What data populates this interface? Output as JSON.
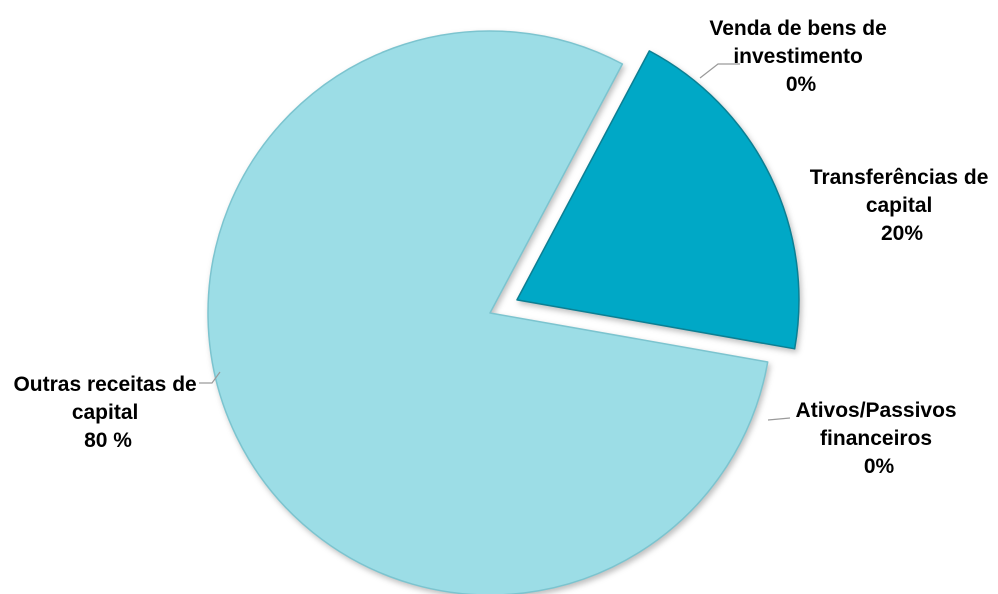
{
  "chart_data": {
    "type": "pie",
    "title": "",
    "slices": [
      {
        "label_lines": [
          "Transferências de",
          "capital"
        ],
        "value_text": "20%",
        "value": 20,
        "color": "#00a8c6",
        "edge": "#0b7f93",
        "exploded": true
      },
      {
        "label_lines": [
          "Ativos/Passivos",
          "financeiros"
        ],
        "value_text": "0%",
        "value": 0,
        "color": "#7fc9d9",
        "edge": "#6ab3c2",
        "exploded": false
      },
      {
        "label_lines": [
          "Outras receitas de",
          "capital"
        ],
        "value_text": "80 %",
        "value": 80,
        "color": "#9cdde6",
        "edge": "#7cc4cf",
        "exploded": false
      },
      {
        "label_lines": [
          "Venda de bens de",
          "investimento"
        ],
        "value_text": "0%",
        "value": 0,
        "color": "#7fc9d9",
        "edge": "#6ab3c2",
        "exploded": false
      }
    ],
    "legend": "none"
  }
}
